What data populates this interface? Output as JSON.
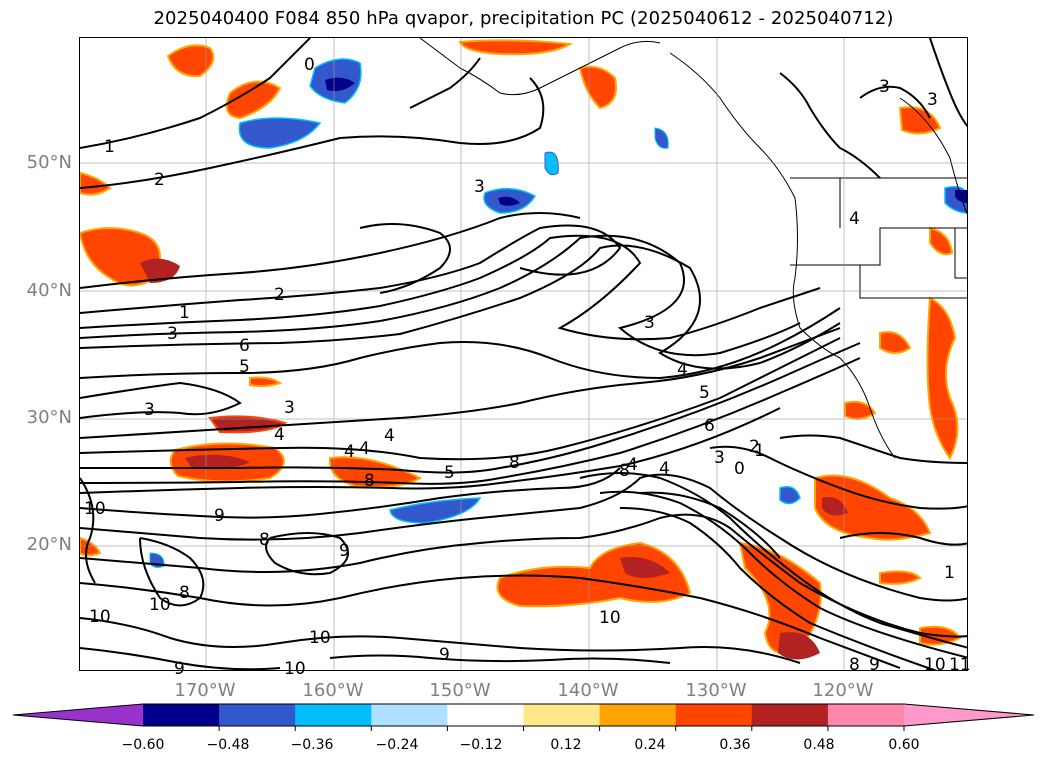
{
  "title": "2025040400 F084 850 hPa qvapor, precipitation PC (2025040612 - 2025040712)",
  "map": {
    "lat_labels": [
      "50°N",
      "40°N",
      "30°N",
      "20°N"
    ],
    "lon_labels": [
      "170°W",
      "160°W",
      "150°W",
      "140°W",
      "130°W",
      "120°W"
    ],
    "contour_labels": [
      "0",
      "1",
      "2",
      "3",
      "2",
      "1",
      "3",
      "6",
      "5",
      "3",
      "3",
      "4",
      "4",
      "4",
      "8",
      "8",
      "10",
      "9",
      "8",
      "9",
      "8",
      "10",
      "10",
      "10",
      "10",
      "9",
      "10",
      "9",
      "3",
      "4",
      "5",
      "6",
      "8",
      "4",
      "3",
      "2",
      "0",
      "1",
      "1",
      "10",
      "11",
      "8",
      "9",
      "4",
      "4",
      "5",
      "3",
      "3",
      "4"
    ]
  },
  "colorbar": {
    "ticks": [
      "−0.60",
      "−0.48",
      "−0.36",
      "−0.24",
      "−0.12",
      "0.12",
      "0.24",
      "0.36",
      "0.48",
      "0.60"
    ],
    "colors": [
      "#9932cc",
      "#00008b",
      "#3358cc",
      "#00bfff",
      "#b0e0ff",
      "#ffffff",
      "#ffe88a",
      "#ffa500",
      "#ff4500",
      "#b22222",
      "#ff88aa",
      "#ff99cc"
    ]
  }
}
